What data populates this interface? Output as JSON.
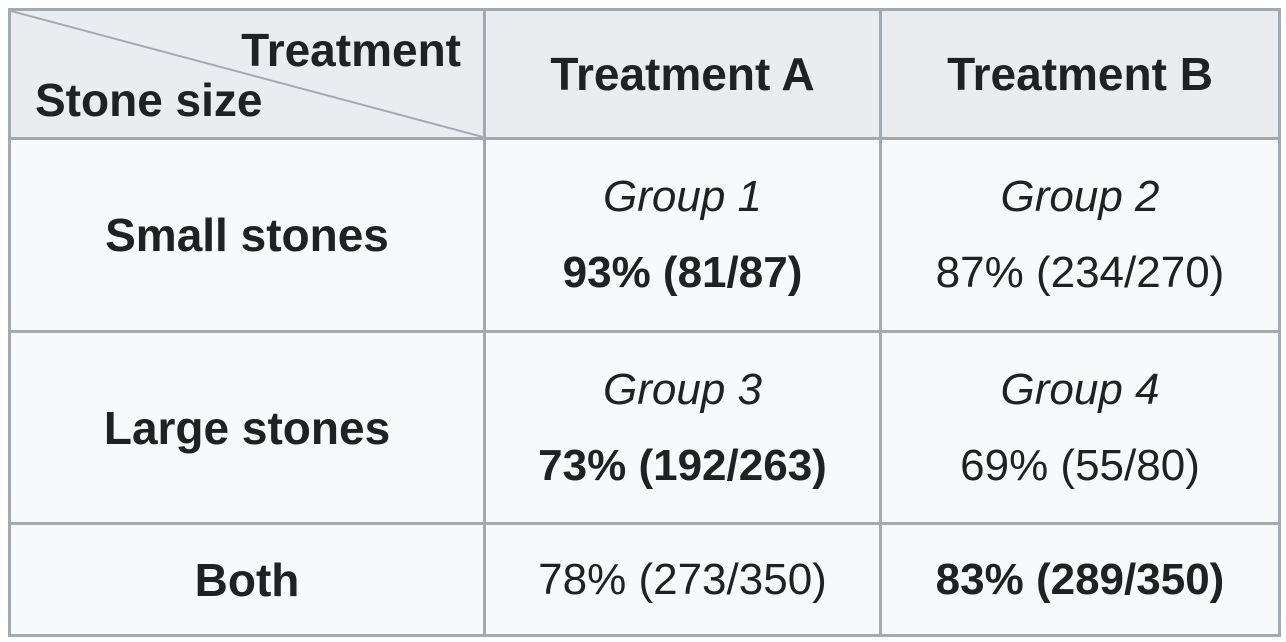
{
  "table": {
    "corner_top_label": "Treatment",
    "corner_bottom_label": "Stone size",
    "columns": [
      "Treatment A",
      "Treatment B"
    ],
    "rows": [
      {
        "label": "Small stones",
        "cells": [
          {
            "group": "Group 1",
            "value": "93% (81/87)",
            "bold": true
          },
          {
            "group": "Group 2",
            "value": "87% (234/270)",
            "bold": false
          }
        ]
      },
      {
        "label": "Large stones",
        "cells": [
          {
            "group": "Group 3",
            "value": "73% (192/263)",
            "bold": true
          },
          {
            "group": "Group 4",
            "value": "69% (55/80)",
            "bold": false
          }
        ]
      },
      {
        "label": "Both",
        "cells": [
          {
            "group": "",
            "value": "78% (273/350)",
            "bold": false
          },
          {
            "group": "",
            "value": "83% (289/350)",
            "bold": true
          }
        ]
      }
    ]
  }
}
